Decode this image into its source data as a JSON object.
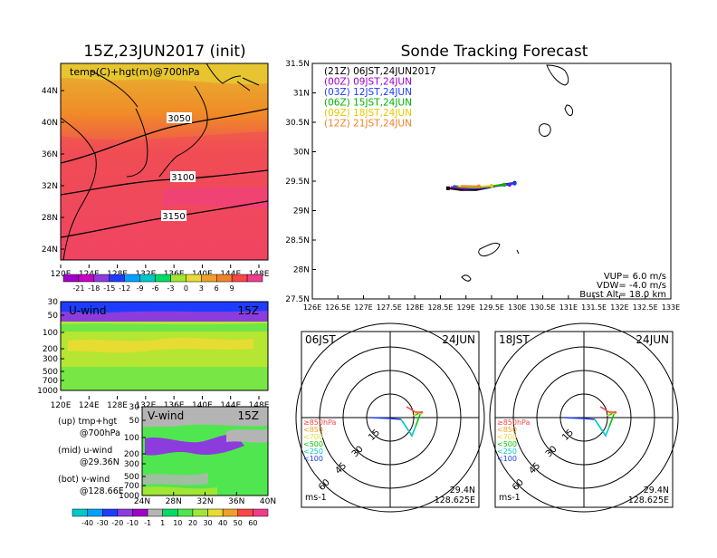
{
  "titles": {
    "init": "15Z,23JUN2017 (init)",
    "main": "Sonde Tracking Forecast"
  },
  "temp_map": {
    "label": "temp(C)+hgt(m)@700hPa",
    "lat_ticks": [
      "44N",
      "40N",
      "36N",
      "32N",
      "28N",
      "24N"
    ],
    "lon_ticks": [
      "120E",
      "124E",
      "128E",
      "132E",
      "136E",
      "140E",
      "144E",
      "148E"
    ],
    "contours": [
      "3050",
      "3100",
      "3150"
    ],
    "colorbar_labels": [
      "-21",
      "-18",
      "-15",
      "-12",
      "-9",
      "-6",
      "-3",
      "0",
      "3",
      "6",
      "9"
    ],
    "colorbar_colors": [
      "#a000c8",
      "#c800c8",
      "#8c3cdc",
      "#1e3cff",
      "#00a0ff",
      "#00c8c8",
      "#00dc64",
      "#a0e632",
      "#e6dc32",
      "#f0a02a",
      "#f08228",
      "#fa4646",
      "#f03c8c"
    ]
  },
  "u_wind": {
    "label": "U-wind",
    "time": "15Z",
    "y_ticks": [
      "30",
      "50",
      "100",
      "200",
      "300",
      "500",
      "700",
      "1000"
    ],
    "x_ticks": [
      "120E",
      "124E",
      "128E",
      "132E",
      "136E",
      "140E",
      "144E",
      "148E"
    ]
  },
  "v_wind": {
    "label": "V-wind",
    "time": "15Z",
    "y_ticks": [
      "30",
      "50",
      "100",
      "200",
      "300",
      "500",
      "700",
      "1000"
    ],
    "x_ticks": [
      "24N",
      "28N",
      "32N",
      "36N",
      "40N"
    ]
  },
  "side_notes": {
    "up1": "(up) tmp+hgt",
    "up2": "@700hPa",
    "mid1": "(mid) u-wind",
    "mid2": "@29.36N",
    "bot1": "(bot) v-wind",
    "bot2": "@128.66E"
  },
  "wind_colorbar": {
    "labels": [
      "-40",
      "-30",
      "-20",
      "-10",
      "-1",
      "1",
      "10",
      "20",
      "30",
      "40",
      "50",
      "60"
    ],
    "colors": [
      "#00c8c8",
      "#00a0ff",
      "#1e3cff",
      "#8c3cdc",
      "#a000c8",
      "#b4b4b4",
      "#00dc64",
      "#50e650",
      "#a0e632",
      "#e6dc32",
      "#f0a02a",
      "#fa4646",
      "#f03c8c"
    ]
  },
  "track_map": {
    "legend": [
      {
        "text": "(21Z) 06JST,24JUN2017",
        "color": "#000000"
      },
      {
        "text": "(00Z) 09JST,24JUN",
        "color": "#a000c8"
      },
      {
        "text": "(03Z) 12JST,24JUN",
        "color": "#1e3cff"
      },
      {
        "text": "(06Z) 15JST,24JUN",
        "color": "#00b400"
      },
      {
        "text": "(09Z) 18JST,24JUN",
        "color": "#e6c800"
      },
      {
        "text": "(12Z) 21JST,24JUN",
        "color": "#f08228"
      }
    ],
    "lat_ticks": [
      "31.5N",
      "31N",
      "30.5N",
      "30N",
      "29.5N",
      "29N",
      "28.5N",
      "28N",
      "27.5N"
    ],
    "lon_ticks": [
      "126E",
      "126.5E",
      "127E",
      "127.5E",
      "128E",
      "128.5E",
      "129E",
      "129.5E",
      "130E",
      "130.5E",
      "131E",
      "131.5E",
      "132E",
      "132.5E",
      "133E"
    ],
    "params": {
      "vup": "VUP= 6.0 m/s",
      "vdw": "VDW= -4.0 m/s",
      "burst": "Burst Alt= 18.0 km"
    }
  },
  "chart_data": [
    {
      "type": "line",
      "title": "Sonde Tracking Forecast",
      "xlim": [
        126,
        133
      ],
      "ylim": [
        27.5,
        31.5
      ],
      "series": [
        {
          "name": "(21Z) 06JST,24JUN2017",
          "color": "#000000",
          "x": [
            128.65,
            128.9,
            129.2,
            129.5,
            129.75,
            129.95
          ],
          "y": [
            29.38,
            29.35,
            29.35,
            29.4,
            29.45,
            29.47
          ]
        },
        {
          "name": "(00Z) 09JST,24JUN",
          "color": "#a000c8",
          "x": [
            128.7,
            129.0,
            129.3,
            129.6,
            129.85
          ],
          "y": [
            29.4,
            29.37,
            29.38,
            29.42,
            29.44
          ]
        },
        {
          "name": "(03Z) 12JST,24JUN",
          "color": "#1e3cff",
          "x": [
            128.75,
            129.1,
            129.4,
            129.7,
            129.95
          ],
          "y": [
            29.42,
            29.38,
            29.39,
            29.44,
            29.46
          ]
        },
        {
          "name": "(06Z) 15JST,24JUN",
          "color": "#00b400",
          "x": [
            128.8,
            129.15,
            129.45,
            129.75
          ],
          "y": [
            29.41,
            29.39,
            29.41,
            29.44
          ]
        },
        {
          "name": "(09Z) 18JST,24JUN",
          "color": "#e6c800",
          "x": [
            128.85,
            129.2,
            129.5
          ],
          "y": [
            29.41,
            29.4,
            29.42
          ]
        },
        {
          "name": "(12Z) 21JST,24JUN",
          "color": "#f08228",
          "x": [
            128.9,
            129.25
          ],
          "y": [
            29.42,
            29.41
          ]
        }
      ]
    }
  ],
  "hodographs": [
    {
      "time": "06JST",
      "date": "24JUN",
      "lat": "29.4N",
      "lon": "128.625E",
      "unit": "ms-1",
      "rings": [
        "15",
        "30",
        "45",
        "60"
      ],
      "levels": [
        {
          "label": "≥850hPa",
          "color": "#fa4646"
        },
        {
          "label": "<850",
          "color": "#f0a02a"
        },
        {
          "label": "<700",
          "color": "#e6dc32"
        },
        {
          "label": "<500",
          "color": "#00c800"
        },
        {
          "label": "<250",
          "color": "#00c8c8"
        },
        {
          "label": "<100",
          "color": "#1e3cff"
        }
      ]
    },
    {
      "time": "18JST",
      "date": "24JUN",
      "lat": "29.4N",
      "lon": "128.625E",
      "unit": "ms-1",
      "rings": [
        "15",
        "30",
        "45",
        "60"
      ],
      "levels": [
        {
          "label": "≥850hPa",
          "color": "#fa4646"
        },
        {
          "label": "<850",
          "color": "#f0a02a"
        },
        {
          "label": "<700",
          "color": "#e6dc32"
        },
        {
          "label": "<500",
          "color": "#00c800"
        },
        {
          "label": "<250",
          "color": "#00c8c8"
        },
        {
          "label": "<100",
          "color": "#1e3cff"
        }
      ]
    }
  ]
}
